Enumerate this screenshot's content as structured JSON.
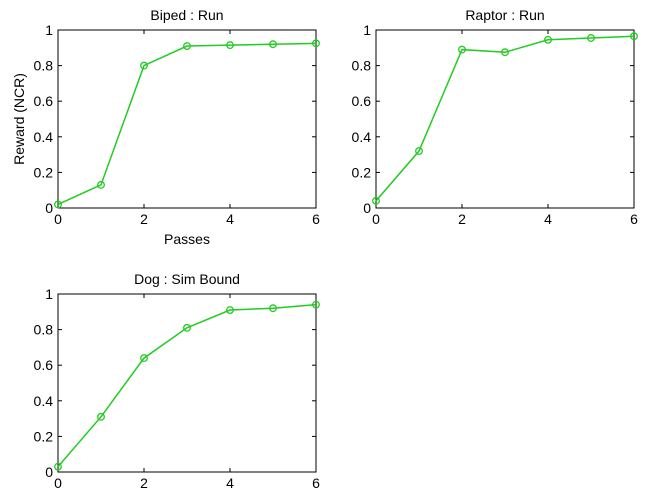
{
  "chart_data": [
    {
      "type": "line",
      "title": "Biped : Run",
      "xlabel": "Passes",
      "ylabel": "Reward (NCR)",
      "xlim": [
        0,
        6
      ],
      "ylim": [
        0,
        1
      ],
      "xticks": [
        "0",
        "2",
        "4",
        "6"
      ],
      "yticks": [
        "0",
        "0.2",
        "0.4",
        "0.6",
        "0.8",
        "1"
      ],
      "grid": false,
      "line_color": "#22cc22",
      "series": [
        {
          "x": [
            0,
            1,
            2,
            3,
            4,
            5,
            6
          ],
          "y": [
            0.02,
            0.13,
            0.8,
            0.91,
            0.915,
            0.92,
            0.925
          ]
        }
      ]
    },
    {
      "type": "line",
      "title": "Raptor : Run",
      "xlabel": "",
      "ylabel": "",
      "xlim": [
        0,
        6
      ],
      "ylim": [
        0,
        1
      ],
      "xticks": [
        "0",
        "2",
        "4",
        "6"
      ],
      "yticks": [
        "0",
        "0.2",
        "0.4",
        "0.6",
        "0.8",
        "1"
      ],
      "grid": false,
      "line_color": "#22cc22",
      "series": [
        {
          "x": [
            0,
            1,
            2,
            3,
            4,
            5,
            6
          ],
          "y": [
            0.04,
            0.32,
            0.89,
            0.875,
            0.945,
            0.955,
            0.965
          ]
        }
      ]
    },
    {
      "type": "line",
      "title": "Dog : Sim Bound",
      "xlabel": "",
      "ylabel": "",
      "xlim": [
        0,
        6
      ],
      "ylim": [
        0,
        1
      ],
      "xticks": [
        "0",
        "2",
        "4",
        "6"
      ],
      "yticks": [
        "0",
        "0.2",
        "0.4",
        "0.6",
        "0.8",
        "1"
      ],
      "grid": false,
      "line_color": "#22cc22",
      "series": [
        {
          "x": [
            0,
            1,
            2,
            3,
            4,
            5,
            6
          ],
          "y": [
            0.03,
            0.31,
            0.64,
            0.81,
            0.91,
            0.92,
            0.94
          ]
        }
      ]
    }
  ]
}
